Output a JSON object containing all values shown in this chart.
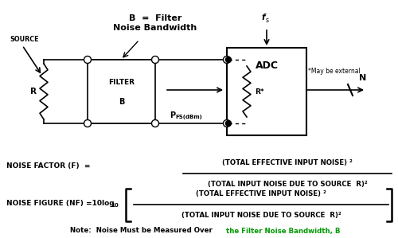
{
  "bg_color": "#ffffff",
  "text_color": "#000000",
  "green_color": "#009900",
  "title_text": "B  =  Filter\nNoise Bandwidth",
  "source_label": "SOURCE",
  "R_label": "R",
  "filter_label_top": "FILTER",
  "filter_label_bot": "B",
  "PFS_label": "P",
  "PFS_sub": "FS(dBm)",
  "ADC_label": "ADC",
  "R_star_label": "R*",
  "N_label": "N",
  "fs_label": "f",
  "fs_sub": "s",
  "may_external": "*May be external",
  "nf_eq1_left": "NOISE FACTOR (F)  =",
  "nf_eq1_num": "(TOTAL EFFECTIVE INPUT NOISE) ²",
  "nf_eq1_den": "(TOTAL INPUT NOISE DUE TO SOURCE  R)²",
  "nf_eq2_left": "NOISE FIGURE (NF) =10log",
  "nf_eq2_sub": "10",
  "nf_eq2_num": "(TOTAL EFFECTIVE INPUT NOISE) ²",
  "nf_eq2_den": "(TOTAL INPUT NOISE DUE TO SOURCE  R)²",
  "note_black": "Note:  Noise Must be Measured Over ",
  "note_green": "the Filter Noise Bandwidth, B"
}
